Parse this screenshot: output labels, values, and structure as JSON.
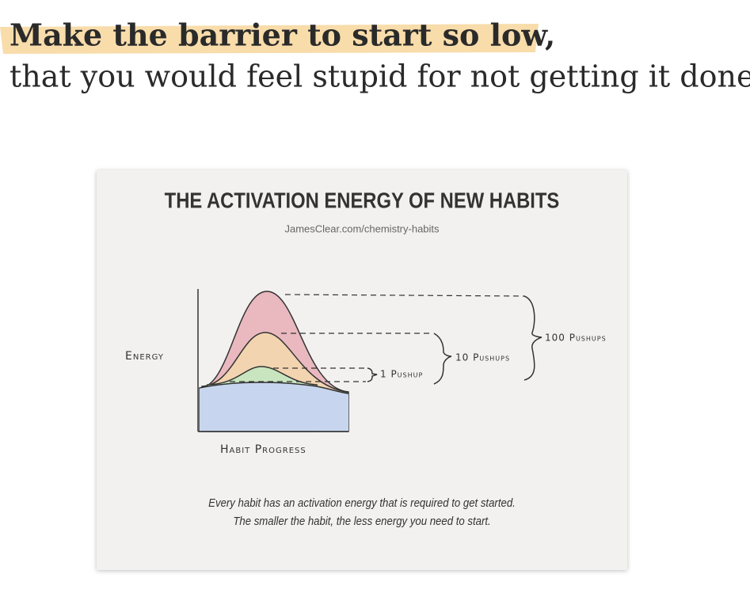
{
  "header": {
    "line1": "Make the barrier to start so low,",
    "line2": "that you would feel stupid for not getting it done."
  },
  "figure": {
    "title": "THE ACTIVATION ENERGY OF NEW HABITS",
    "source": "JamesClear.com/chemistry-habits",
    "y_label": "Energy",
    "x_label": "Habit Progress",
    "annotations": [
      "100 Pushups",
      "10 Pushups",
      "1 Pushup"
    ],
    "caption": [
      "Every habit has an activation energy that is required to get started.",
      "The smaller the habit, the less energy you need to start."
    ]
  }
}
